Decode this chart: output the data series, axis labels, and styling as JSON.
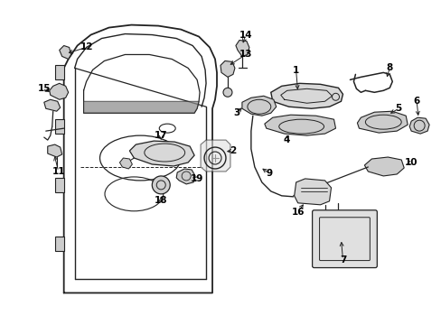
{
  "bg_color": "#ffffff",
  "line_color": "#222222",
  "figsize": [
    4.89,
    3.6
  ],
  "dpi": 100,
  "font_size": 7.5
}
